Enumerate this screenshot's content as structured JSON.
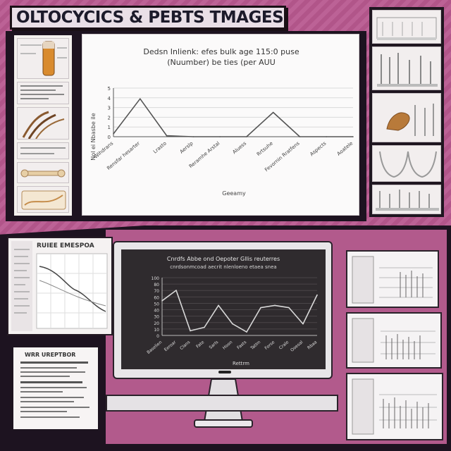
{
  "banner": {
    "title": "OLTOCYCICS & PEBTS TMAGES"
  },
  "top_chart": {
    "title_line1": "Dedsn Inlienk: efes bulk age 115:0 puse",
    "title_line2": "(Nuumber) be ties (per AUU",
    "y_axis_label": "Nol ei Nbasbe ile",
    "x_axis_label": "Geeamy",
    "y_ticks": [
      "5",
      "4",
      "3",
      "2",
      "1",
      "0"
    ],
    "x_ticks": [
      "Wihdrans",
      "Rensfar hesarter",
      "Lrasto",
      "Aerslp",
      "Reramhe Arstal",
      "Aluess",
      "Rrtsuhe",
      "Fevornin Rratfens",
      "Aspects",
      "Aoatele"
    ]
  },
  "monitor_chart": {
    "title_line1": "Cnrdfs Abbe ond Oepoter Gllis reuterres",
    "title_line2": "cnrdsonmcoad aecrit nlenloeno etaea snea",
    "x_axis_label": "Rettrm",
    "y_ticks": [
      "100",
      "80",
      "70",
      "60",
      "50",
      "40",
      "30",
      "20",
      "10",
      "0"
    ],
    "x_ticks": [
      "Baselien",
      "Eeroar",
      "Clans",
      "Fate",
      "Sarls",
      "Hoon",
      "Fasts",
      "Tatlm",
      "Forse",
      "Crale",
      "Ooesal",
      "Rbaa"
    ]
  },
  "small_card_a": {
    "header": "RUIEE EMESPOA"
  },
  "small_card_b": {
    "header": "WRR UREPTBOR"
  },
  "chart_data": [
    {
      "type": "line",
      "title": "Dedsn Inlienk: efes bulk age 115:0 puse (Nuumber) be ties (per AUU",
      "xlabel": "Geeamy",
      "ylabel": "Nol ei Nbasbe ile",
      "categories": [
        "Wihdrans",
        "Rensfar hesarter",
        "Lrasto",
        "Aerslp",
        "Reramhe Arstal",
        "Aluess",
        "Rrtsuhe",
        "Fevornin Rratfens",
        "Aspects",
        "Aoatele"
      ],
      "values": [
        0.3,
        3.9,
        0.1,
        0.0,
        0.0,
        0.0,
        2.5,
        0.0,
        0.0,
        0.0
      ],
      "ylim": [
        0,
        5
      ],
      "grid": true
    },
    {
      "type": "line",
      "title": "Cnrdfs Abbe ond Oepoter Gllis reuterres cnrdsonmcoad aecrit nlenloeno etaea snea",
      "xlabel": "Rettrm",
      "categories": [
        "Baselien",
        "Eeroar",
        "Clans",
        "Fate",
        "Sarls",
        "Hoon",
        "Fasts",
        "Tatlm",
        "Forse",
        "Crale",
        "Ooesal",
        "Rbaa"
      ],
      "values": [
        60,
        78,
        8,
        14,
        52,
        20,
        6,
        48,
        52,
        48,
        20,
        70
      ],
      "ylim": [
        0,
        100
      ],
      "grid": true
    }
  ]
}
